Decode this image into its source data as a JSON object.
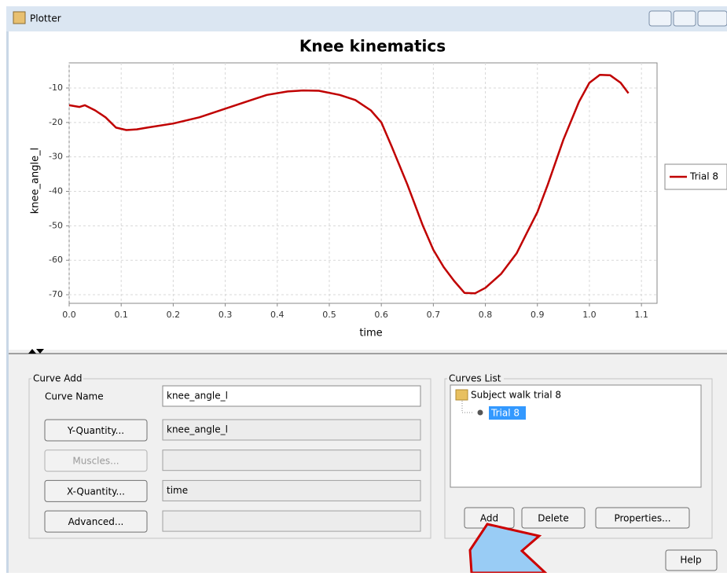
{
  "window": {
    "title": "Plotter"
  },
  "chart_data": {
    "type": "line",
    "title": "Knee kinematics",
    "x_label": "time",
    "y_label": "knee_angle_l",
    "x": [
      0.0,
      0.02,
      0.03,
      0.05,
      0.07,
      0.09,
      0.11,
      0.13,
      0.15,
      0.2,
      0.25,
      0.3,
      0.35,
      0.38,
      0.42,
      0.45,
      0.48,
      0.52,
      0.55,
      0.58,
      0.6,
      0.62,
      0.65,
      0.68,
      0.7,
      0.72,
      0.74,
      0.76,
      0.78,
      0.8,
      0.83,
      0.86,
      0.88,
      0.9,
      0.92,
      0.95,
      0.98,
      1.0,
      1.02,
      1.04,
      1.06,
      1.075
    ],
    "series": [
      {
        "name": "Trial 8",
        "color": "#c00000",
        "values": [
          -15,
          -15.5,
          -15,
          -16.5,
          -18.5,
          -21.5,
          -22.2,
          -22,
          -21.5,
          -20.3,
          -18.5,
          -16,
          -13.5,
          -12,
          -11,
          -10.7,
          -10.8,
          -12,
          -13.5,
          -16.5,
          -20,
          -27,
          -38,
          -50,
          -57,
          -62,
          -66,
          -69.5,
          -69.6,
          -68,
          -64,
          -58,
          -52,
          -46,
          -38,
          -25,
          -14,
          -8.5,
          -6.2,
          -6.3,
          -8.5,
          -11.5
        ]
      }
    ],
    "xlim": [
      0,
      1.13
    ],
    "xticks": [
      {
        "value": 0,
        "label": "0.0"
      },
      0.1,
      0.2,
      0.3,
      0.4,
      0.5,
      0.6,
      0.7,
      0.8,
      0.9,
      {
        "value": 1,
        "label": "1.0"
      },
      1.1
    ],
    "ylim": [
      -72.5,
      -2.7
    ],
    "yticks": [
      -10,
      -20,
      -30,
      -40,
      -50,
      -60,
      -70
    ],
    "grid": true,
    "legend": "right"
  },
  "curve_add": {
    "title": "Curve Add",
    "name_label": "Curve Name",
    "name_value": "knee_angle_l",
    "rows": [
      {
        "button": "Y-Quantity...",
        "value": "knee_angle_l"
      },
      {
        "button": "Muscles..."
      },
      {
        "button": "X-Quantity...",
        "value": "time"
      },
      {
        "button": "Advanced..."
      }
    ]
  },
  "curves_list": {
    "title": "Curves List",
    "group": "Subject walk trial 8",
    "item": "Trial 8",
    "buttons": [
      "Add",
      "Delete",
      "Properties..."
    ]
  },
  "help": "Help"
}
